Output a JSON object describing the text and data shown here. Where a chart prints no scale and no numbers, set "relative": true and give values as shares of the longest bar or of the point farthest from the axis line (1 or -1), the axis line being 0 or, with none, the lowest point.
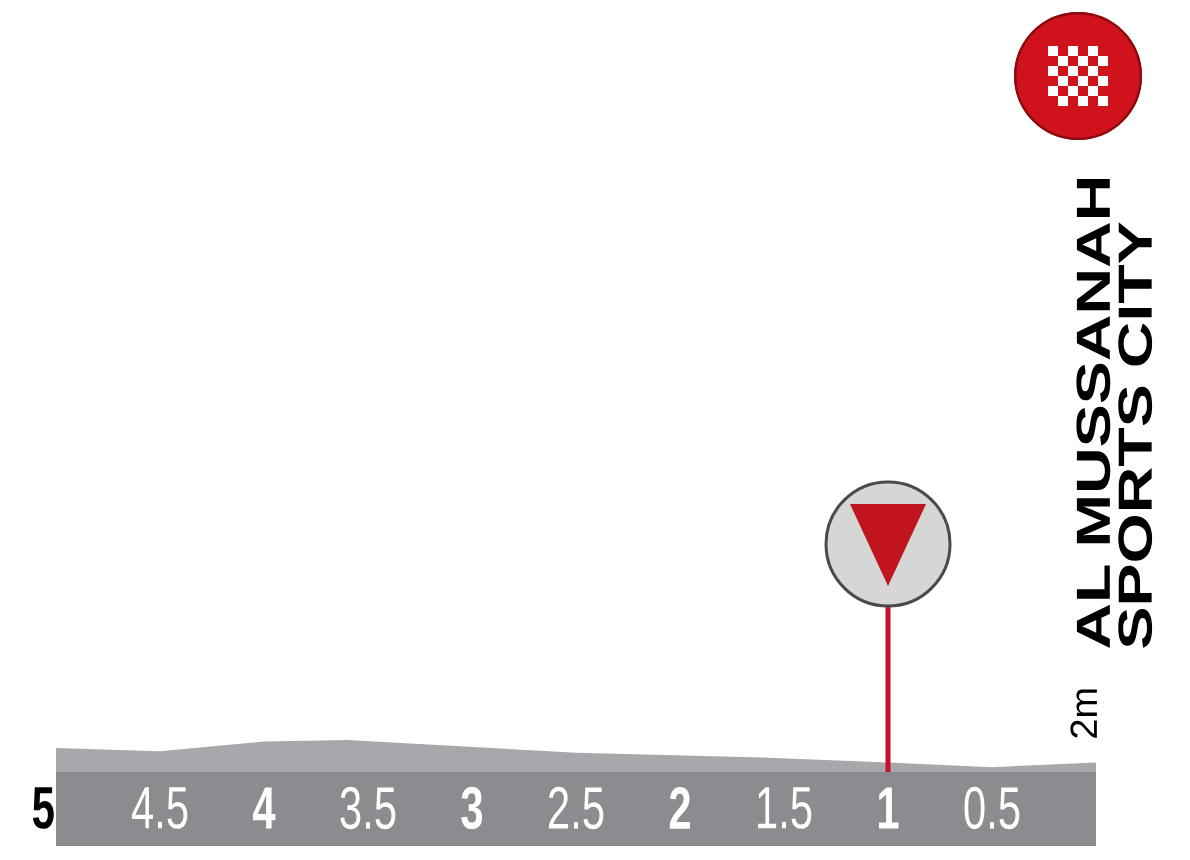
{
  "chart_data": {
    "type": "area",
    "relative": true,
    "color": "#a7a8ab",
    "x": [
      5,
      4.5,
      4,
      3.6,
      2.5,
      1.6,
      1,
      0.5,
      0
    ],
    "values": [
      0.75,
      0.65,
      0.95,
      1,
      0.6,
      0.45,
      0.3,
      0.15,
      0.3
    ],
    "xlim": [
      5,
      0
    ],
    "xticks": [
      5,
      4.5,
      4,
      3.5,
      3,
      2.5,
      2,
      1.5,
      1,
      0.5
    ],
    "ref_lines": [
      {
        "axis": "x",
        "value": 1,
        "color": "#c8102e"
      }
    ],
    "annotations": [
      "2m",
      "AL MUSSANAH SPORTS CITY"
    ]
  }
}
